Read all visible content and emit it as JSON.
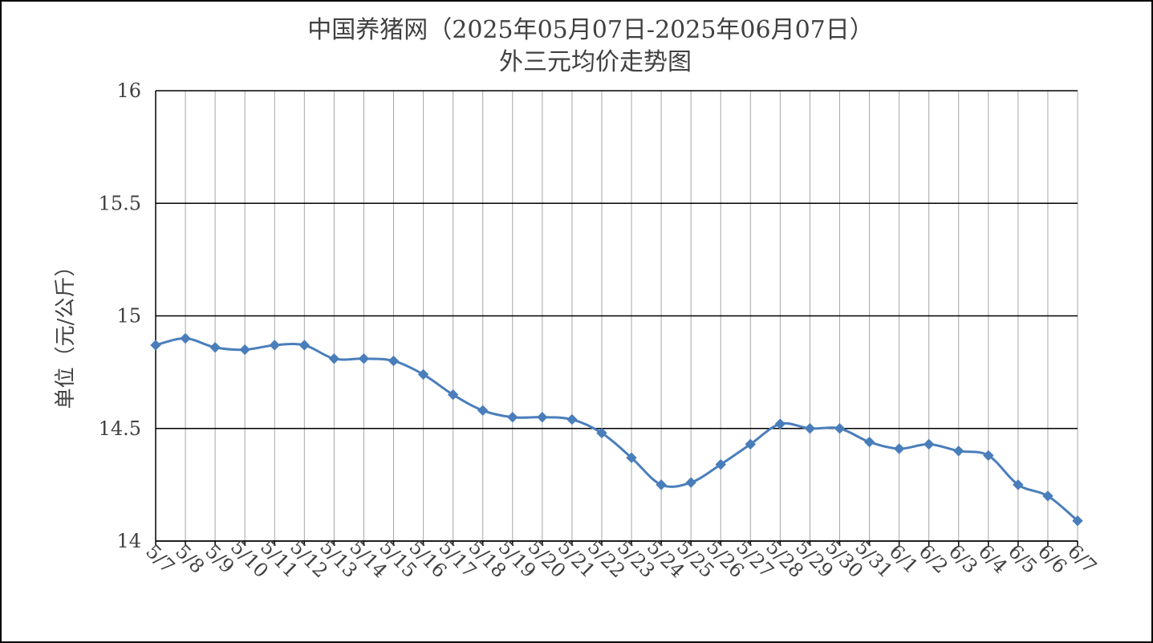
{
  "chart_data": {
    "type": "line",
    "title": "中国养猪网（2025年05月07日-2025年06月07日）",
    "subtitle": "外三元均价走势图",
    "xlabel": "",
    "ylabel": "单位（元/公斤）",
    "ylim": [
      14,
      16
    ],
    "yticks": [
      "14",
      "14.5",
      "15",
      "15.5",
      "16"
    ],
    "ytick_values": [
      14,
      14.5,
      15,
      15.5,
      16
    ],
    "grid": "horizontal and vertical",
    "legend": "none",
    "colors": {
      "line": "#4a7ebb",
      "marker": "#4a7ebb",
      "grid_h": "#000000",
      "grid_v": "#a6a6a6",
      "text": "#404040"
    },
    "categories": [
      "5/7",
      "5/8",
      "5/9",
      "5/10",
      "5/11",
      "5/12",
      "5/13",
      "5/14",
      "5/15",
      "5/16",
      "5/17",
      "5/18",
      "5/19",
      "5/20",
      "5/21",
      "5/22",
      "5/23",
      "5/24",
      "5/25",
      "5/26",
      "5/27",
      "5/28",
      "5/29",
      "5/30",
      "5/31",
      "6/1",
      "6/2",
      "6/3",
      "6/4",
      "6/5",
      "6/6",
      "6/7"
    ],
    "series": [
      {
        "values": [
          14.87,
          14.9,
          14.86,
          14.85,
          14.87,
          14.87,
          14.81,
          14.81,
          14.8,
          14.74,
          14.65,
          14.58,
          14.55,
          14.55,
          14.54,
          14.48,
          14.37,
          14.25,
          14.26,
          14.34,
          14.43,
          14.52,
          14.5,
          14.5,
          14.44,
          14.41,
          14.43,
          14.4,
          14.38,
          14.25,
          14.2,
          14.09
        ]
      }
    ]
  }
}
